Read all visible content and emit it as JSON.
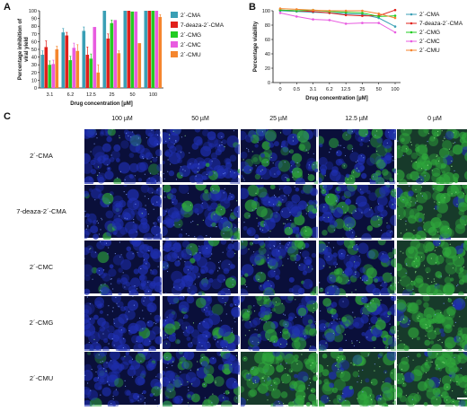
{
  "panels": {
    "a": "A",
    "b": "B",
    "c": "C"
  },
  "chart_data": [
    {
      "type": "bar",
      "panel": "A",
      "xlabel": "Drug concentration [µM]",
      "ylabel": "Percentage inhibition of viral yield",
      "ylim": [
        0,
        100
      ],
      "yticks": [
        "0",
        "10",
        "20",
        "30",
        "40",
        "50",
        "60",
        "70",
        "80",
        "90",
        "100"
      ],
      "categories": [
        "3.1",
        "6.2",
        "12.5",
        "25",
        "50",
        "100"
      ],
      "legend_position": "right",
      "series": [
        {
          "name": "2´-CMA",
          "color": "#3a9fb5",
          "values": [
            43,
            72,
            74,
            100,
            100,
            100
          ],
          "errors": [
            5,
            5,
            5,
            0,
            0,
            0
          ]
        },
        {
          "name": "7-deaza-2´-CMA",
          "color": "#e0201b",
          "values": [
            53,
            68,
            43,
            64,
            100,
            100
          ],
          "errors": [
            8,
            4,
            10,
            6,
            0,
            0
          ]
        },
        {
          "name": "2´-CMG",
          "color": "#22cc22",
          "values": [
            30,
            36,
            38,
            84,
            99,
            100
          ],
          "errors": [
            5,
            5,
            6,
            4,
            0,
            0
          ]
        },
        {
          "name": "2´-CMC",
          "color": "#e85be0",
          "values": [
            31,
            52,
            79,
            88,
            99,
            100
          ],
          "errors": [
            5,
            6,
            0,
            0,
            0,
            0
          ]
        },
        {
          "name": "2´-CMU",
          "color": "#f5862e",
          "values": [
            50,
            48,
            20,
            45,
            58,
            92
          ],
          "errors": [
            4,
            8,
            10,
            3,
            0,
            3
          ]
        }
      ]
    },
    {
      "type": "line",
      "panel": "B",
      "xlabel": "Drug concentration [µM]",
      "ylabel": "Percentage viability",
      "ylim": [
        0,
        100
      ],
      "yticks": [
        "0",
        "20",
        "40",
        "60",
        "80",
        "100"
      ],
      "categories": [
        "0",
        "0.5",
        "3.1",
        "6.2",
        "12.5",
        "25",
        "50",
        "100"
      ],
      "legend_position": "right",
      "series": [
        {
          "name": "2´-CMA",
          "color": "#3a9fb5",
          "values": [
            100,
            99,
            98,
            97,
            96,
            95,
            90,
            78
          ]
        },
        {
          "name": "7-deaza-2´-CMA",
          "color": "#e0201b",
          "values": [
            101,
            100,
            99,
            97,
            94,
            93,
            93,
            101
          ]
        },
        {
          "name": "2´-CMG",
          "color": "#22cc22",
          "values": [
            101,
            100,
            101,
            99,
            98,
            97,
            92,
            93
          ]
        },
        {
          "name": "2´-CMC",
          "color": "#e85be0",
          "values": [
            97,
            92,
            88,
            87,
            82,
            83,
            83,
            70
          ]
        },
        {
          "name": "2´-CMU",
          "color": "#f5862e",
          "values": [
            103,
            102,
            101,
            100,
            100,
            100,
            96,
            90
          ]
        }
      ]
    }
  ],
  "microscopy": {
    "columns": [
      "100 µM",
      "50 µM",
      "25 µM",
      "12.5 µM",
      "0 µM"
    ],
    "rows": [
      "2´-CMA",
      "7-deaza-2´-CMA",
      "2´-CMC",
      "2´-CMG",
      "2´-CMU"
    ],
    "green_level": [
      [
        0.05,
        0.1,
        0.35,
        0.45,
        0.85
      ],
      [
        0.05,
        0.2,
        0.3,
        0.3,
        0.85
      ],
      [
        0.05,
        0.1,
        0.3,
        0.4,
        0.85
      ],
      [
        0.05,
        0.15,
        0.4,
        0.35,
        0.85
      ],
      [
        0.15,
        0.4,
        0.8,
        0.75,
        0.85
      ]
    ],
    "colors": {
      "blue": "#1f2fb0",
      "green": "#2fa83c",
      "dark": "#0a0f3a"
    }
  }
}
